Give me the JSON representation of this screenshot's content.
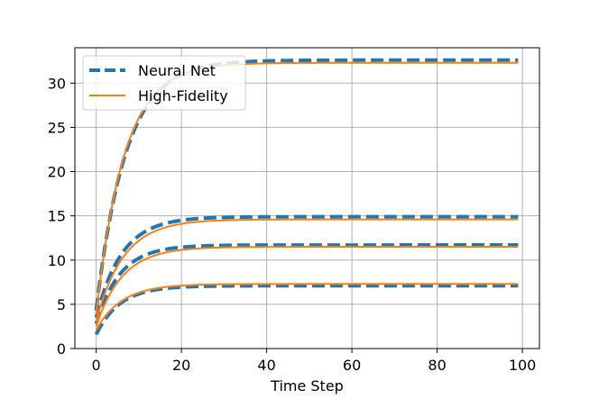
{
  "chart_data": {
    "type": "line",
    "title": "",
    "xlabel": "Time Step",
    "ylabel": "",
    "xlim": [
      -5,
      104
    ],
    "ylim": [
      0,
      34
    ],
    "xticks": [
      0,
      20,
      40,
      60,
      80,
      100
    ],
    "yticks": [
      0,
      5,
      10,
      15,
      20,
      25,
      30
    ],
    "grid": true,
    "legend_position": "top-left",
    "colors": {
      "neural": "#1f77b4",
      "hifi": "#ff7f0e",
      "grid": "#b0b0b0"
    },
    "series": [
      {
        "name": "Neural Net",
        "group": 1,
        "style": "dashed",
        "start": 4.3,
        "final": 32.6,
        "tau": 7.0
      },
      {
        "name": "High-Fidelity",
        "group": 1,
        "style": "solid",
        "start": 3.9,
        "final": 32.3,
        "tau": 6.6
      },
      {
        "name": "Neural Net",
        "group": 2,
        "style": "dashed",
        "start": 3.5,
        "final": 14.9,
        "tau": 6.0
      },
      {
        "name": "High-Fidelity",
        "group": 2,
        "style": "solid",
        "start": 3.1,
        "final": 14.6,
        "tau": 6.4
      },
      {
        "name": "Neural Net",
        "group": 3,
        "style": "dashed",
        "start": 2.8,
        "final": 11.7,
        "tau": 5.6
      },
      {
        "name": "High-Fidelity",
        "group": 3,
        "style": "solid",
        "start": 2.5,
        "final": 11.5,
        "tau": 6.2
      },
      {
        "name": "Neural Net",
        "group": 4,
        "style": "dashed",
        "start": 1.6,
        "final": 7.1,
        "tau": 5.6
      },
      {
        "name": "High-Fidelity",
        "group": 4,
        "style": "solid",
        "start": 2.1,
        "final": 7.3,
        "tau": 6.0
      }
    ],
    "x_start": 0,
    "x_end": 99,
    "legend": [
      {
        "label": "Neural Net",
        "style": "dashed"
      },
      {
        "label": "High-Fidelity",
        "style": "solid"
      }
    ]
  }
}
